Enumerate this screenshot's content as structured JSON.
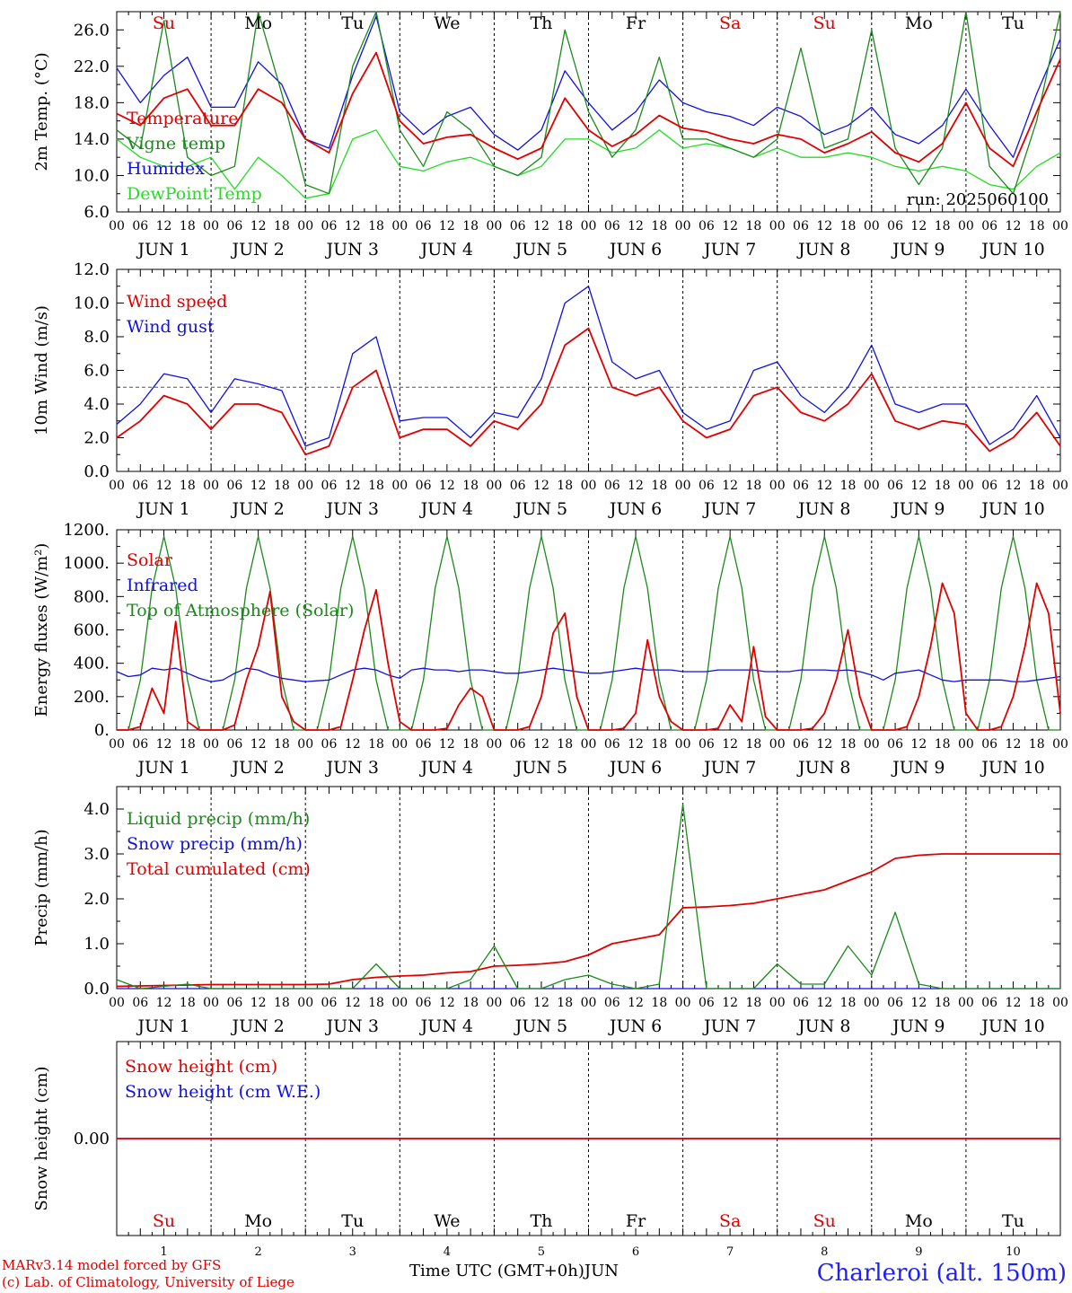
{
  "chart_data": [
    {
      "type": "line",
      "ylabel": "2m Temp. (°C)",
      "ylim": [
        6,
        28
      ],
      "yticks": [
        "6.0",
        "10.0",
        "14.0",
        "18.0",
        "22.0",
        "26.0"
      ],
      "annotation": "run: 2025060100",
      "weekdays": [
        {
          "label": "Su",
          "color": "#e00000"
        },
        {
          "label": "Mo",
          "color": "#000000"
        },
        {
          "label": "Tu",
          "color": "#000000"
        },
        {
          "label": "We",
          "color": "#000000"
        },
        {
          "label": "Th",
          "color": "#000000"
        },
        {
          "label": "Fr",
          "color": "#000000"
        },
        {
          "label": "Sa",
          "color": "#e00000"
        },
        {
          "label": "Su",
          "color": "#e00000"
        },
        {
          "label": "Mo",
          "color": "#000000"
        },
        {
          "label": "Tu",
          "color": "#000000"
        }
      ],
      "x_hours": [
        0,
        6,
        12,
        18,
        24,
        30,
        36,
        42,
        48,
        54,
        60,
        66,
        72,
        78,
        84,
        90,
        96,
        102,
        108,
        114,
        120,
        126,
        132,
        138,
        144,
        150,
        156,
        162,
        168,
        174,
        180,
        186,
        192,
        198,
        204,
        210,
        216,
        222,
        228,
        234,
        240
      ],
      "series": [
        {
          "name": "Temperature",
          "color": "#e00000",
          "values": [
            16.8,
            15.5,
            18.5,
            19.5,
            15.5,
            15.5,
            19.5,
            18,
            14,
            12.5,
            19,
            23.5,
            16,
            13.5,
            14.2,
            14.5,
            13,
            11.8,
            13,
            18.5,
            15,
            13.2,
            14.5,
            16.6,
            15.2,
            14.8,
            14,
            13.5,
            14.5,
            14,
            12.5,
            13.5,
            14.8,
            12.5,
            11.5,
            13.5,
            18,
            13,
            11,
            17,
            22.8
          ]
        },
        {
          "name": "Vigne temp",
          "color": "#1a8a1a",
          "values": [
            15,
            13,
            27,
            12,
            10,
            11,
            28,
            19,
            9,
            8,
            22,
            28,
            15,
            11,
            17,
            15,
            11,
            10,
            12,
            26,
            17,
            12,
            15,
            23,
            14,
            14,
            13,
            12,
            14,
            24,
            13,
            14,
            26,
            13,
            9,
            13,
            29,
            11,
            8,
            16,
            28
          ]
        },
        {
          "name": "Humidex",
          "color": "#1010e0",
          "values": [
            21.8,
            18,
            21,
            23,
            17.5,
            17.5,
            22.5,
            20,
            14,
            13,
            21,
            27.5,
            17,
            14.5,
            16.5,
            17.5,
            14.5,
            12.8,
            15,
            21.5,
            18,
            15,
            17,
            20.5,
            18,
            17,
            16.5,
            15.5,
            17.5,
            16.5,
            14.5,
            15.5,
            17.5,
            14.5,
            13.5,
            15.5,
            19.5,
            15.5,
            12,
            19,
            25
          ]
        },
        {
          "name": "DewPoint Temp",
          "color": "#22dd22",
          "values": [
            14,
            12,
            11,
            11,
            12,
            8.5,
            12,
            10,
            7.5,
            8,
            14,
            15,
            11,
            10.5,
            11.5,
            12,
            11,
            10,
            11,
            14,
            14,
            12.5,
            13,
            15,
            13,
            13.5,
            13,
            12,
            13,
            12,
            12,
            12.5,
            12,
            11,
            10.5,
            11,
            10.5,
            9,
            8.5,
            11,
            12.5
          ]
        }
      ]
    },
    {
      "type": "line",
      "ylabel": "10m Wind (m/s)",
      "ylim": [
        0,
        12
      ],
      "yticks": [
        "0.0",
        "2.0",
        "4.0",
        "6.0",
        "8.0",
        "10.0",
        "12.0"
      ],
      "reference_line": 5,
      "x_hours": [
        0,
        6,
        12,
        18,
        24,
        30,
        36,
        42,
        48,
        54,
        60,
        66,
        72,
        78,
        84,
        90,
        96,
        102,
        108,
        114,
        120,
        126,
        132,
        138,
        144,
        150,
        156,
        162,
        168,
        174,
        180,
        186,
        192,
        198,
        204,
        210,
        216,
        222,
        228,
        234,
        240
      ],
      "series": [
        {
          "name": "Wind speed",
          "color": "#e00000",
          "values": [
            2,
            3,
            4.5,
            4,
            2.5,
            4,
            4,
            3.5,
            1,
            1.5,
            5,
            6,
            2,
            2.5,
            2.5,
            1.5,
            3,
            2.5,
            4,
            7.5,
            8.5,
            5,
            4.5,
            5,
            3,
            2,
            2.5,
            4.5,
            5,
            3.5,
            3,
            4,
            5.8,
            3,
            2.5,
            3,
            2.8,
            1.2,
            2,
            3.5,
            1.5
          ]
        },
        {
          "name": "Wind gust",
          "color": "#1010e0",
          "values": [
            2.8,
            4,
            5.8,
            5.5,
            3.5,
            5.5,
            5.2,
            4.8,
            1.5,
            2,
            7,
            8,
            3,
            3.2,
            3.2,
            2,
            3.5,
            3.2,
            5.5,
            10,
            11,
            6.5,
            5.5,
            6,
            3.5,
            2.5,
            3,
            6,
            6.5,
            4.5,
            3.5,
            5,
            7.5,
            4,
            3.5,
            4,
            4,
            1.6,
            2.5,
            4.5,
            2
          ]
        }
      ]
    },
    {
      "type": "line",
      "ylabel": "Energy fluxes (W/m²)",
      "ylim": [
        0,
        1200
      ],
      "yticks": [
        "0.",
        "200.",
        "400.",
        "600.",
        "800.",
        "1000.",
        "1200."
      ],
      "x_hours": [
        0,
        3,
        6,
        9,
        12,
        15,
        18,
        21,
        24,
        27,
        30,
        33,
        36,
        39,
        42,
        45,
        48,
        51,
        54,
        57,
        60,
        63,
        66,
        69,
        72,
        75,
        78,
        81,
        84,
        87,
        90,
        93,
        96,
        99,
        102,
        105,
        108,
        111,
        114,
        117,
        120,
        123,
        126,
        129,
        132,
        135,
        138,
        141,
        144,
        147,
        150,
        153,
        156,
        159,
        162,
        165,
        168,
        171,
        174,
        177,
        180,
        183,
        186,
        189,
        192,
        195,
        198,
        201,
        204,
        207,
        210,
        213,
        216,
        219,
        222,
        225,
        228,
        231,
        234,
        237,
        240
      ],
      "series": [
        {
          "name": "Solar",
          "color": "#e00000",
          "values": [
            0,
            0,
            20,
            250,
            100,
            650,
            50,
            0,
            0,
            0,
            30,
            300,
            500,
            830,
            200,
            50,
            0,
            0,
            0,
            20,
            300,
            600,
            840,
            400,
            50,
            0,
            0,
            0,
            10,
            150,
            250,
            200,
            0,
            0,
            0,
            20,
            200,
            580,
            700,
            200,
            0,
            0,
            0,
            10,
            100,
            540,
            200,
            50,
            0,
            0,
            0,
            10,
            150,
            50,
            500,
            80,
            0,
            0,
            0,
            10,
            100,
            300,
            600,
            200,
            0,
            0,
            0,
            20,
            200,
            500,
            880,
            700,
            100,
            0,
            0,
            20,
            200,
            500,
            880,
            700,
            100
          ]
        },
        {
          "name": "Infrared",
          "color": "#1010e0",
          "values": [
            350,
            320,
            330,
            370,
            360,
            370,
            340,
            310,
            290,
            300,
            340,
            370,
            360,
            330,
            310,
            300,
            290,
            295,
            300,
            330,
            360,
            370,
            360,
            330,
            310,
            360,
            370,
            360,
            360,
            350,
            360,
            360,
            350,
            340,
            340,
            350,
            360,
            370,
            360,
            350,
            340,
            340,
            350,
            360,
            370,
            360,
            360,
            360,
            350,
            350,
            350,
            360,
            360,
            360,
            360,
            350,
            350,
            350,
            360,
            360,
            360,
            355,
            360,
            350,
            330,
            300,
            340,
            350,
            360,
            330,
            300,
            290,
            300,
            300,
            300,
            300,
            290,
            290,
            300,
            310,
            320
          ]
        },
        {
          "name": "Top of Atmosphere (Solar)",
          "color": "#1a8a1a",
          "values": [
            0,
            0,
            300,
            850,
            1160,
            850,
            300,
            0,
            0,
            0,
            300,
            850,
            1160,
            850,
            300,
            0,
            0,
            0,
            300,
            850,
            1160,
            850,
            300,
            0,
            0,
            0,
            300,
            850,
            1160,
            850,
            300,
            0,
            0,
            0,
            300,
            850,
            1160,
            850,
            300,
            0,
            0,
            0,
            300,
            850,
            1160,
            850,
            300,
            0,
            0,
            0,
            300,
            850,
            1160,
            850,
            300,
            0,
            0,
            0,
            300,
            850,
            1160,
            850,
            300,
            0,
            0,
            0,
            300,
            850,
            1160,
            850,
            300,
            0,
            0,
            0,
            300,
            850,
            1160,
            850,
            300,
            0,
            0
          ]
        }
      ]
    },
    {
      "type": "line",
      "ylabel": "Precip (mm/h)",
      "ylim": [
        0,
        4.5
      ],
      "yticks": [
        "0.0",
        "1.0",
        "2.0",
        "3.0",
        "4.0"
      ],
      "x_hours": [
        0,
        6,
        12,
        18,
        24,
        30,
        36,
        42,
        48,
        54,
        60,
        66,
        72,
        78,
        84,
        90,
        96,
        102,
        108,
        114,
        120,
        126,
        132,
        138,
        144,
        150,
        156,
        162,
        168,
        174,
        180,
        186,
        192,
        198,
        204,
        210,
        216,
        222,
        228,
        234,
        240
      ],
      "series": [
        {
          "name": "Liquid precip (mm/h)",
          "color": "#1a8a1a",
          "values": [
            0.2,
            0,
            0.05,
            0.1,
            0,
            0,
            0,
            0,
            0,
            0,
            0,
            0.55,
            0,
            0,
            0,
            0.2,
            0.95,
            0,
            0,
            0.2,
            0.3,
            0.1,
            0,
            0.1,
            4.1,
            0,
            0,
            0,
            0.55,
            0.1,
            0.1,
            0.95,
            0.3,
            1.7,
            0.1,
            0,
            0,
            0,
            0,
            0,
            0
          ]
        },
        {
          "name": "Snow precip (mm/h)",
          "color": "#1010e0",
          "values": [
            0,
            0,
            0,
            0,
            0,
            0,
            0,
            0,
            0,
            0,
            0,
            0,
            0,
            0,
            0,
            0,
            0,
            0,
            0,
            0,
            0,
            0,
            0,
            0,
            0,
            0,
            0,
            0,
            0,
            0,
            0,
            0,
            0,
            0,
            0,
            0,
            0,
            0,
            0,
            0,
            0
          ]
        },
        {
          "name": "Total cumulated (cm)",
          "color": "#e00000",
          "values": [
            0.05,
            0.06,
            0.07,
            0.08,
            0.09,
            0.09,
            0.09,
            0.09,
            0.09,
            0.1,
            0.2,
            0.25,
            0.28,
            0.3,
            0.35,
            0.38,
            0.5,
            0.52,
            0.55,
            0.6,
            0.75,
            1.0,
            1.1,
            1.2,
            1.8,
            1.82,
            1.85,
            1.9,
            2.0,
            2.1,
            2.2,
            2.4,
            2.6,
            2.9,
            2.97,
            3.0,
            3.0,
            3.0,
            3.0,
            3.0,
            3.0
          ]
        }
      ]
    },
    {
      "type": "line",
      "ylabel": "Snow height (cm)",
      "ylim": [
        -1,
        1
      ],
      "yticks": [
        "0.00"
      ],
      "day_numbers": [
        "1",
        "2",
        "3",
        "4",
        "5",
        "6",
        "7",
        "8",
        "9",
        "10"
      ],
      "series": [
        {
          "name": "Snow height (cm)",
          "color": "#e00000",
          "values": [
            0,
            0
          ]
        },
        {
          "name": "Snow height (cm W.E.)",
          "color": "#1010e0",
          "values": [
            0,
            0
          ]
        }
      ]
    }
  ],
  "x_axis": {
    "hour_ticks": [
      "00",
      "06",
      "12",
      "18"
    ],
    "end_tick": "00",
    "day_labels": [
      "JUN  1",
      "JUN  2",
      "JUN  3",
      "JUN  4",
      "JUN  5",
      "JUN  6",
      "JUN  7",
      "JUN  8",
      "JUN  9",
      "JUN 10"
    ],
    "title": "Time UTC (GMT+0h)",
    "month": "JUN"
  },
  "footer": {
    "model": "MARv3.14 model forced by GFS",
    "lab": "(c) Lab. of Climatology, University of Liege",
    "station": "Charleroi (alt. 150m)"
  }
}
